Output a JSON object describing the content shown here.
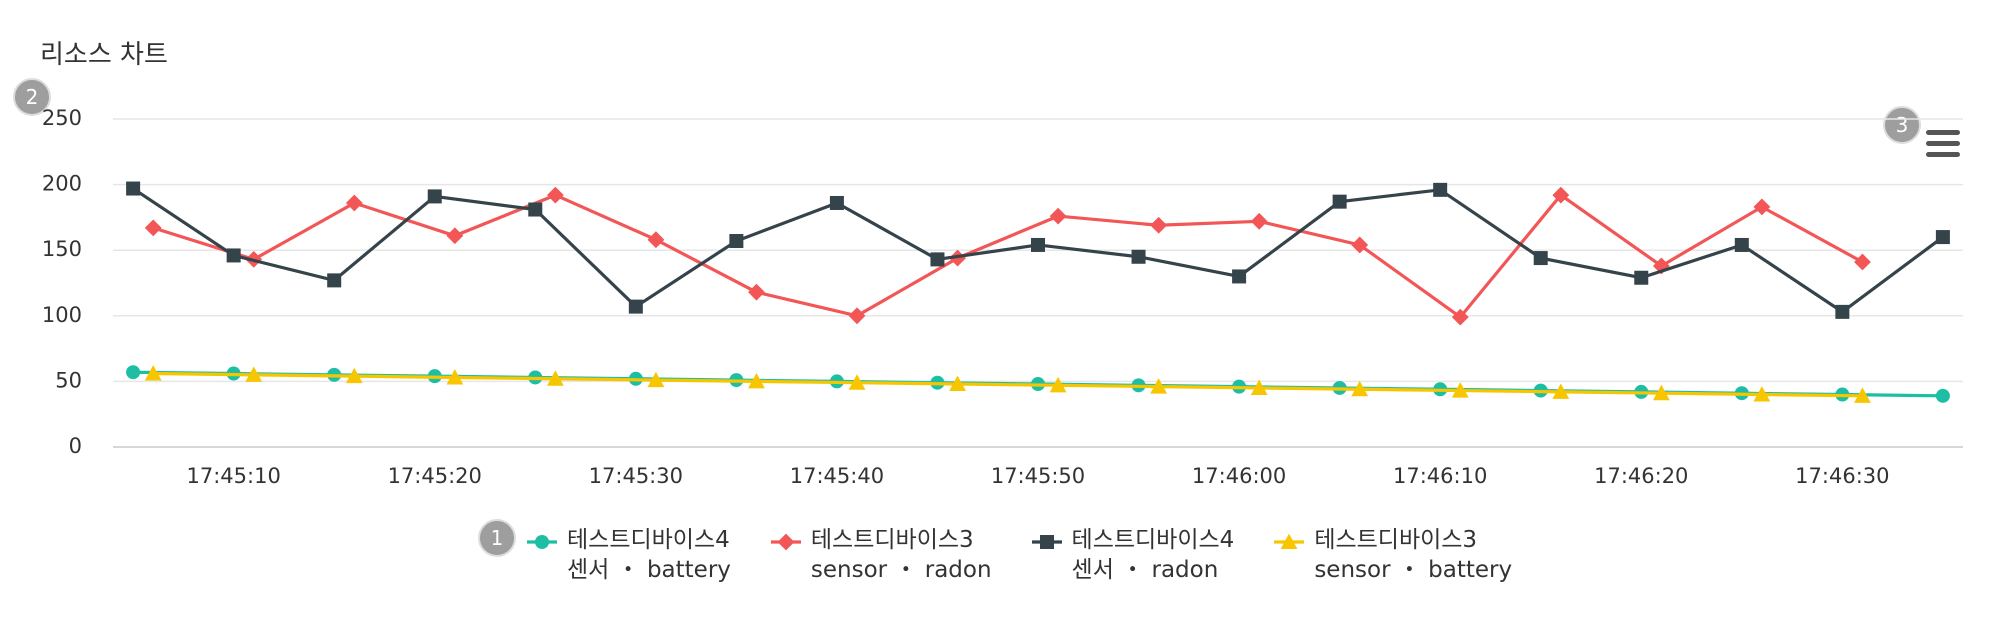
{
  "chart_data": {
    "type": "line",
    "title": "리소스 차트",
    "badges": [
      "1",
      "2",
      "3"
    ],
    "xlim": [
      "17:45:04",
      "17:46:36"
    ],
    "xticks": [
      "17:45:10",
      "17:45:20",
      "17:45:30",
      "17:45:40",
      "17:45:50",
      "17:46:00",
      "17:46:10",
      "17:46:20",
      "17:46:30"
    ],
    "ylim": [
      0,
      250
    ],
    "yticks": [
      0,
      50,
      100,
      150,
      200,
      250
    ],
    "grid": true,
    "legend": "bottom",
    "series": [
      {
        "name": "테스트디바이스4\n센서 ・ battery",
        "color": "#1ebea5",
        "marker": "circle",
        "x": [
          "17:45:05",
          "17:45:10",
          "17:45:15",
          "17:45:20",
          "17:45:25",
          "17:45:30",
          "17:45:35",
          "17:45:40",
          "17:45:45",
          "17:45:50",
          "17:45:55",
          "17:46:00",
          "17:46:05",
          "17:46:10",
          "17:46:15",
          "17:46:20",
          "17:46:25",
          "17:46:30",
          "17:46:35"
        ],
        "values": [
          57,
          56,
          55,
          54,
          53,
          52,
          51,
          50,
          49,
          48,
          47,
          46,
          45,
          44,
          43,
          42,
          41,
          40,
          39
        ]
      },
      {
        "name": "테스트디바이스3\nsensor ・ radon",
        "color": "#f25656",
        "marker": "diamond",
        "x": [
          "17:45:06",
          "17:45:11",
          "17:45:16",
          "17:45:21",
          "17:45:26",
          "17:45:31",
          "17:45:36",
          "17:45:41",
          "17:45:46",
          "17:45:51",
          "17:45:56",
          "17:46:01",
          "17:46:06",
          "17:46:11",
          "17:46:16",
          "17:46:21",
          "17:46:26",
          "17:46:31"
        ],
        "values": [
          167,
          143,
          186,
          161,
          192,
          158,
          118,
          100,
          144,
          176,
          169,
          172,
          154,
          99,
          192,
          138,
          183,
          141
        ]
      },
      {
        "name": "테스트디바이스4\n센서 ・ radon",
        "color": "#35434a",
        "marker": "square",
        "x": [
          "17:45:05",
          "17:45:10",
          "17:45:15",
          "17:45:20",
          "17:45:25",
          "17:45:30",
          "17:45:35",
          "17:45:40",
          "17:45:45",
          "17:45:50",
          "17:45:55",
          "17:46:00",
          "17:46:05",
          "17:46:10",
          "17:46:15",
          "17:46:20",
          "17:46:25",
          "17:46:30",
          "17:46:35"
        ],
        "values": [
          197,
          146,
          127,
          191,
          181,
          107,
          157,
          186,
          143,
          154,
          145,
          130,
          187,
          196,
          144,
          129,
          154,
          103,
          160
        ]
      },
      {
        "name": "테스트디바이스3\nsensor ・ battery",
        "color": "#f7c600",
        "marker": "triangle",
        "x": [
          "17:45:06",
          "17:45:11",
          "17:45:16",
          "17:45:21",
          "17:45:26",
          "17:45:31",
          "17:45:36",
          "17:45:41",
          "17:45:46",
          "17:45:51",
          "17:45:56",
          "17:46:01",
          "17:46:06",
          "17:46:11",
          "17:46:16",
          "17:46:21",
          "17:46:26",
          "17:46:31"
        ],
        "values": [
          56,
          55,
          54,
          53,
          52,
          51,
          50,
          49,
          48,
          47,
          46,
          45,
          44,
          43,
          42,
          41,
          40,
          39
        ]
      }
    ]
  }
}
